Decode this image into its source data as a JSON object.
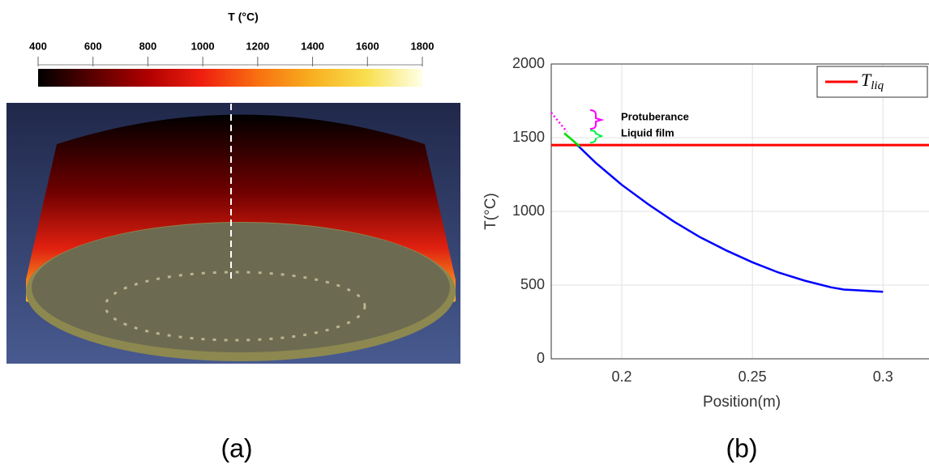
{
  "chart_data": [
    {
      "type": "colorbar",
      "title": "T (°C)",
      "caption": "(a)",
      "ticks": [
        400,
        600,
        800,
        1000,
        1200,
        1400,
        1600,
        1800
      ],
      "lim": [
        400,
        1800
      ],
      "colors": [
        "#000000",
        "#5a0000",
        "#b00000",
        "#f02010",
        "#f87010",
        "#f8b020",
        "#f8e050",
        "#ffffe8"
      ]
    },
    {
      "type": "line",
      "caption": "(b)",
      "xlabel": "Position(m)",
      "ylabel": "T(°C)",
      "xlim": [
        0.173,
        0.3176
      ],
      "ylim": [
        0,
        2000
      ],
      "xticks": [
        0.2,
        0.25,
        0.3
      ],
      "yticks": [
        0,
        500,
        1000,
        1500,
        2000
      ],
      "grid": true,
      "legend": "upper right",
      "annotations": [
        "Protuberance",
        "Liquid film"
      ],
      "series": [
        {
          "name": "Tliq",
          "color": "#ff0000",
          "linestyle": "solid",
          "legend": true,
          "x": [
            0.173,
            0.3176
          ],
          "values": [
            1450,
            1450
          ]
        },
        {
          "color": "#0000ff",
          "linestyle": "solid",
          "legend": false,
          "x": [
            0.183,
            0.19,
            0.2,
            0.21,
            0.22,
            0.23,
            0.24,
            0.25,
            0.26,
            0.27,
            0.28,
            0.285,
            0.29,
            0.3
          ],
          "values": [
            1450,
            1330,
            1180,
            1050,
            930,
            825,
            735,
            655,
            585,
            530,
            485,
            470,
            465,
            455
          ]
        },
        {
          "color": "#00dd00",
          "linestyle": "solid",
          "legend": false,
          "x": [
            0.178,
            0.184
          ],
          "values": [
            1530,
            1440
          ]
        },
        {
          "color": "#ff00ff",
          "linestyle": "dotted",
          "legend": false,
          "x": [
            0.173,
            0.179
          ],
          "values": [
            1670,
            1540
          ]
        }
      ]
    }
  ]
}
